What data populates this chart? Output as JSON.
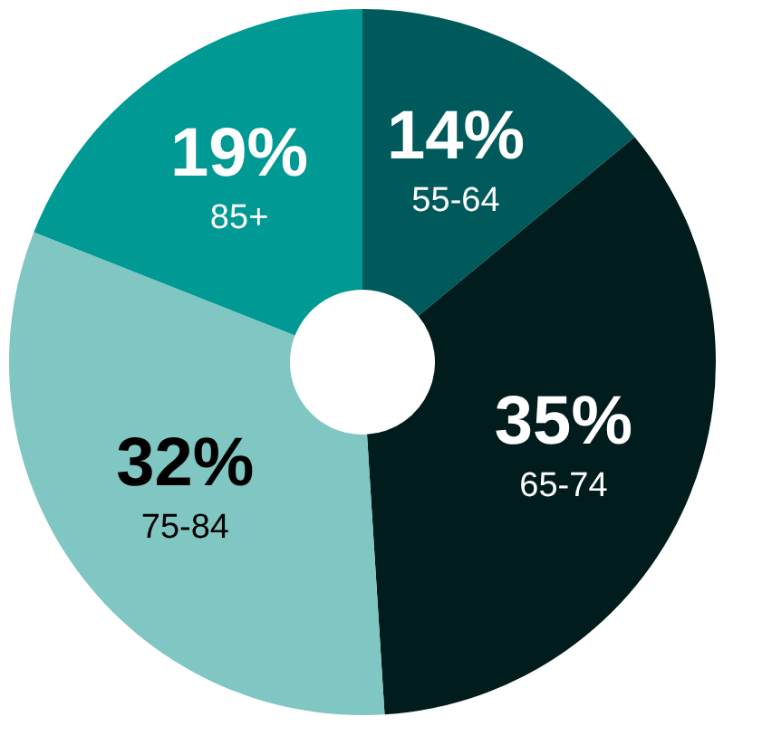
{
  "chart_data": {
    "type": "donut",
    "categories": [
      "55-64",
      "65-74",
      "75-84",
      "85+"
    ],
    "values": [
      14,
      35,
      32,
      19
    ],
    "colors": [
      "#005a5c",
      "#001c1c",
      "#80c6c2",
      "#009993"
    ],
    "value_labels": [
      "14%",
      "35%",
      "32%",
      "19%"
    ],
    "legend": false
  }
}
